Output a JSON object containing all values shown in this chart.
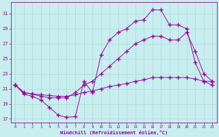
{
  "xlabel": "Windchill (Refroidissement éolien,°C)",
  "ylabel": "",
  "background_color": "#c8eef0",
  "line_color": "#990099",
  "grid_color": "#b0d8d8",
  "xlim": [
    -0.5,
    23.5
  ],
  "ylim": [
    16.5,
    32.5
  ],
  "yticks": [
    17,
    19,
    21,
    23,
    25,
    27,
    29,
    31
  ],
  "xticks": [
    0,
    1,
    2,
    3,
    4,
    5,
    6,
    7,
    8,
    9,
    10,
    11,
    12,
    13,
    14,
    15,
    16,
    17,
    18,
    19,
    20,
    21,
    22,
    23
  ],
  "line1_x": [
    0,
    1,
    2,
    3,
    4,
    5,
    6,
    7,
    8,
    9,
    10,
    11,
    12,
    13,
    14,
    15,
    16,
    17,
    18,
    19,
    20,
    21,
    22,
    23
  ],
  "line1_y": [
    21.5,
    20.3,
    20.0,
    19.5,
    18.5,
    17.5,
    17.2,
    17.3,
    22.0,
    20.5,
    25.5,
    27.5,
    28.5,
    29.0,
    30.0,
    30.2,
    31.5,
    31.5,
    29.5,
    29.5,
    29.0,
    24.5,
    22.0,
    21.5
  ],
  "line2_x": [
    0,
    1,
    2,
    3,
    4,
    5,
    6,
    7,
    8,
    9,
    10,
    11,
    12,
    13,
    14,
    15,
    16,
    17,
    18,
    19,
    20,
    21,
    22,
    23
  ],
  "line2_y": [
    21.5,
    20.5,
    20.3,
    20.0,
    19.8,
    19.8,
    19.8,
    20.5,
    21.5,
    22.0,
    23.0,
    24.0,
    25.0,
    26.0,
    27.0,
    27.5,
    28.0,
    28.0,
    27.5,
    27.5,
    28.5,
    26.0,
    23.0,
    22.0
  ],
  "line3_x": [
    0,
    1,
    2,
    3,
    4,
    5,
    6,
    7,
    8,
    9,
    10,
    11,
    12,
    13,
    14,
    15,
    16,
    17,
    18,
    19,
    20,
    21,
    22,
    23
  ],
  "line3_y": [
    21.5,
    20.5,
    20.3,
    20.2,
    20.1,
    20.0,
    20.0,
    20.2,
    20.5,
    20.7,
    21.0,
    21.3,
    21.5,
    21.7,
    22.0,
    22.2,
    22.5,
    22.5,
    22.5,
    22.5,
    22.5,
    22.3,
    22.0,
    22.0
  ]
}
